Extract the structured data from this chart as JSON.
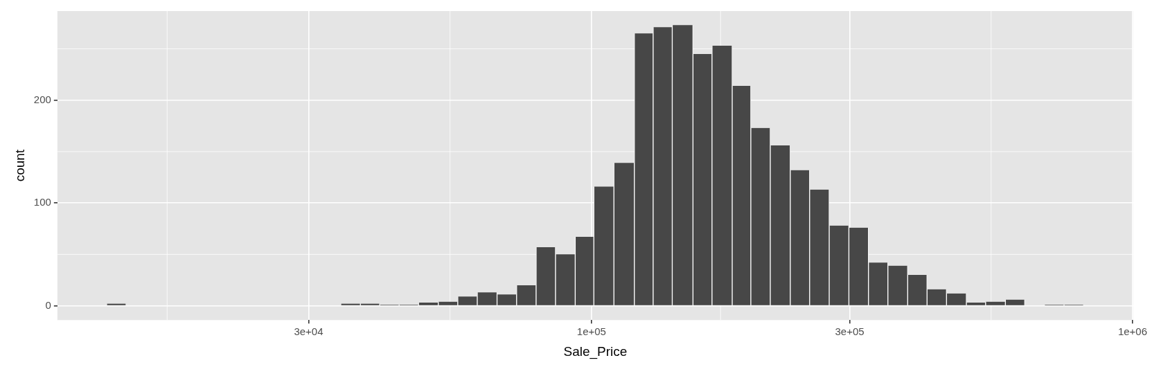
{
  "chart_data": {
    "type": "histogram",
    "xlabel": "Sale_Price",
    "ylabel": "count",
    "bins": [
      12700,
      13800,
      15000,
      16300,
      17700,
      19200,
      20900,
      22700,
      24600,
      26800,
      29100,
      31600,
      34400,
      37400,
      40600,
      44100,
      47900,
      52100,
      56600,
      61500,
      66900,
      72700,
      79000,
      85800,
      93300,
      101000,
      110000,
      120000,
      130000,
      141000,
      154000,
      167000,
      182000,
      197000,
      214000,
      233000,
      253000,
      275000,
      299000,
      325000,
      353000,
      384000,
      417000,
      453000,
      493000,
      535000,
      582000,
      632000,
      687000,
      747000,
      812000
    ],
    "values": [
      2,
      0,
      0,
      0,
      0,
      0,
      0,
      0,
      0,
      0,
      0,
      0,
      2,
      2,
      1,
      1,
      3,
      4,
      9,
      13,
      11,
      20,
      57,
      50,
      67,
      116,
      139,
      265,
      271,
      273,
      245,
      253,
      214,
      173,
      156,
      132,
      113,
      78,
      76,
      42,
      39,
      30,
      16,
      12,
      3,
      4,
      6,
      0,
      1,
      1
    ],
    "color": "#474747",
    "xlim": [
      10300,
      1003000
    ],
    "ylim": [
      -13.9,
      286.7
    ],
    "xticks": [
      {
        "value": 30000,
        "label": "3e+04"
      },
      {
        "value": 100000,
        "label": "1e+05"
      },
      {
        "value": 300000,
        "label": "3e+05"
      },
      {
        "value": 1000000,
        "label": "1e+06"
      }
    ],
    "yticks": [
      0,
      100,
      200
    ],
    "log": "x",
    "grid": true
  }
}
